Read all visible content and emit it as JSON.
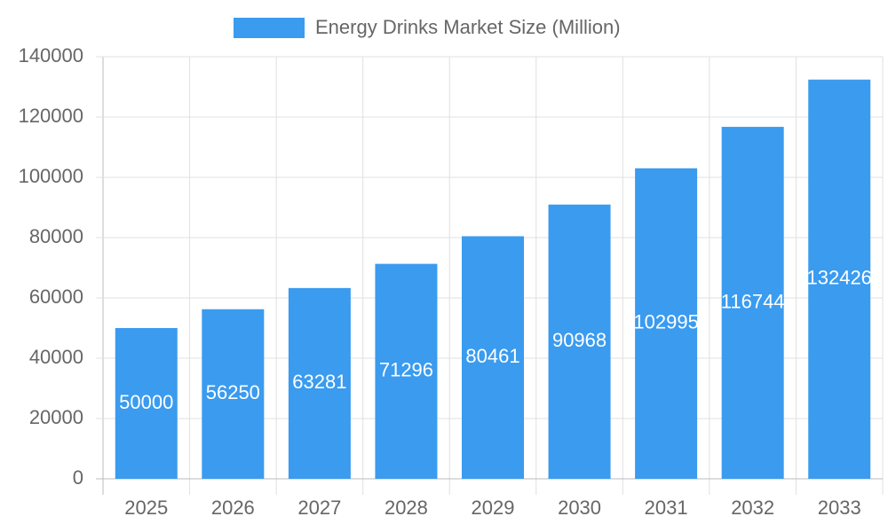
{
  "chart_data": {
    "type": "bar",
    "categories": [
      "2025",
      "2026",
      "2027",
      "2028",
      "2029",
      "2030",
      "2031",
      "2032",
      "2033"
    ],
    "series": [
      {
        "name": "Energy Drinks Market Size (Million)",
        "color": "#3a9bef",
        "values": [
          50000,
          56250,
          63281,
          71296,
          80461,
          90968,
          102995,
          116744,
          132426
        ]
      }
    ],
    "ylim": [
      0,
      140000
    ],
    "yticks": [
      0,
      20000,
      40000,
      60000,
      80000,
      100000,
      120000,
      140000
    ],
    "grid": true,
    "legend": "top",
    "data_labels": true
  }
}
